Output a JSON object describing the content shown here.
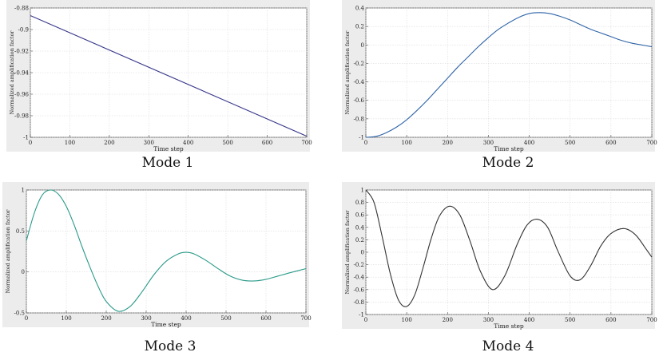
{
  "captions": [
    "Mode 1",
    "Mode 2",
    "Mode 3",
    "Mode 4"
  ],
  "chart_data": [
    {
      "type": "line",
      "title": "",
      "xlabel": "Time step",
      "ylabel": "Normalized amplification factor",
      "xlim": [
        0,
        700
      ],
      "ylim": [
        -1,
        -0.88
      ],
      "xticks": [
        0,
        100,
        200,
        300,
        400,
        500,
        600,
        700
      ],
      "yticks": [
        -1,
        -0.98,
        -0.96,
        -0.94,
        -0.92,
        -0.9,
        -0.88
      ],
      "ytick_labels": [
        "-1",
        "-0.98",
        "-0.96",
        "-0.94",
        "-0.92",
        "-0.9",
        "-0.88"
      ],
      "grid": true,
      "color": "#3a3a8c",
      "series": [
        {
          "x": [
            0,
            700
          ],
          "y": [
            -0.887,
            -0.999
          ]
        }
      ]
    },
    {
      "type": "line",
      "title": "",
      "xlabel": "Time step",
      "ylabel": "Normalized amplification factor",
      "xlim": [
        0,
        700
      ],
      "ylim": [
        -1,
        0.4
      ],
      "xticks": [
        0,
        100,
        200,
        300,
        400,
        500,
        600,
        700
      ],
      "yticks": [
        -1,
        -0.8,
        -0.6,
        -0.4,
        -0.2,
        0,
        0.2,
        0.4
      ],
      "ytick_labels": [
        "-1",
        "-0.8",
        "-0.6",
        "-0.4",
        "-0.2",
        "0",
        "0.2",
        "0.4"
      ],
      "grid": true,
      "color": "#2f64a8",
      "series": [
        {
          "x": [
            0,
            25,
            50,
            75,
            100,
            125,
            150,
            175,
            200,
            225,
            250,
            275,
            300,
            325,
            350,
            375,
            400,
            425,
            450,
            475,
            500,
            525,
            550,
            575,
            600,
            625,
            650,
            675,
            700
          ],
          "y": [
            -1.0,
            -0.99,
            -0.95,
            -0.89,
            -0.81,
            -0.71,
            -0.6,
            -0.48,
            -0.36,
            -0.24,
            -0.13,
            -0.02,
            0.08,
            0.17,
            0.24,
            0.3,
            0.34,
            0.35,
            0.34,
            0.31,
            0.27,
            0.22,
            0.17,
            0.13,
            0.09,
            0.05,
            0.02,
            0.0,
            -0.02
          ]
        }
      ]
    },
    {
      "type": "line",
      "title": "",
      "xlabel": "Time step",
      "ylabel": "Normalized amplification factor",
      "xlim": [
        0,
        700
      ],
      "ylim": [
        -0.5,
        1
      ],
      "xticks": [
        0,
        100,
        200,
        300,
        400,
        500,
        600,
        700
      ],
      "yticks": [
        -0.5,
        0,
        0.5,
        1
      ],
      "ytick_labels": [
        "-0.5",
        "0",
        "0.5",
        "1"
      ],
      "grid": true,
      "color": "#2a9a8a",
      "series": [
        {
          "x": [
            0,
            20,
            40,
            60,
            80,
            100,
            120,
            140,
            160,
            180,
            200,
            230,
            260,
            290,
            320,
            350,
            380,
            400,
            420,
            450,
            480,
            510,
            540,
            570,
            600,
            630,
            660,
            700
          ],
          "y": [
            0.38,
            0.72,
            0.94,
            1.0,
            0.95,
            0.8,
            0.57,
            0.3,
            0.05,
            -0.18,
            -0.36,
            -0.48,
            -0.42,
            -0.24,
            -0.03,
            0.13,
            0.22,
            0.24,
            0.22,
            0.14,
            0.04,
            -0.05,
            -0.1,
            -0.11,
            -0.09,
            -0.05,
            -0.01,
            0.04
          ]
        }
      ]
    },
    {
      "type": "line",
      "title": "",
      "xlabel": "Time step",
      "ylabel": "Normalized amplification factor",
      "xlim": [
        0,
        700
      ],
      "ylim": [
        -1,
        1
      ],
      "xticks": [
        0,
        100,
        200,
        300,
        400,
        500,
        600,
        700
      ],
      "yticks": [
        -1,
        -0.8,
        -0.6,
        -0.4,
        -0.2,
        0,
        0.2,
        0.4,
        0.6,
        0.8,
        1
      ],
      "ytick_labels": [
        "-1",
        "-0.8",
        "-0.6",
        "-0.4",
        "-0.2",
        "0",
        "0.2",
        "0.4",
        "0.6",
        "0.8",
        "1"
      ],
      "grid": true,
      "color": "#333333",
      "series": [
        {
          "x": [
            0,
            20,
            40,
            60,
            80,
            100,
            120,
            140,
            160,
            180,
            205,
            230,
            255,
            280,
            310,
            340,
            370,
            395,
            420,
            445,
            470,
            500,
            525,
            550,
            575,
            600,
            632,
            660,
            685,
            700
          ],
          "y": [
            1.0,
            0.8,
            0.25,
            -0.35,
            -0.77,
            -0.87,
            -0.68,
            -0.25,
            0.22,
            0.58,
            0.74,
            0.6,
            0.18,
            -0.3,
            -0.6,
            -0.38,
            0.12,
            0.44,
            0.53,
            0.4,
            0.02,
            -0.38,
            -0.44,
            -0.22,
            0.1,
            0.3,
            0.38,
            0.28,
            0.06,
            -0.08
          ]
        }
      ]
    }
  ]
}
